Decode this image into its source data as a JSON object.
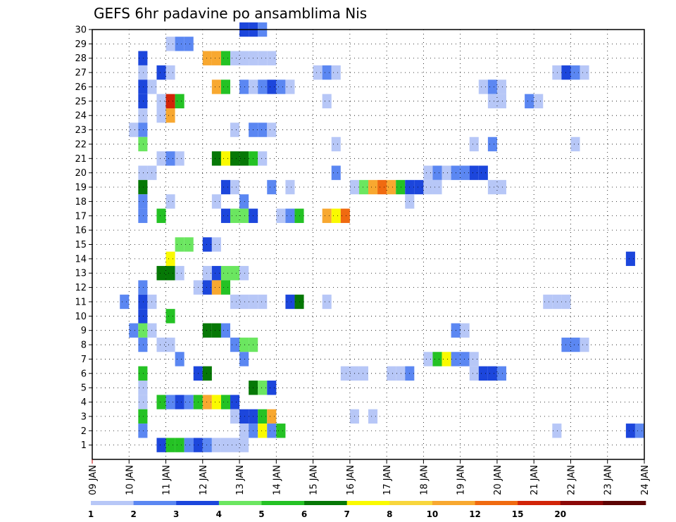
{
  "chart_data": {
    "type": "heatmap",
    "title": "GEFS 6hr padavine po ansamblima Nis",
    "xlabel": "",
    "ylabel": "",
    "x_ticks": [
      "09 JAN",
      "10 JAN",
      "11 JAN",
      "12 JAN",
      "13 JAN",
      "14 JAN",
      "15 JAN",
      "16 JAN",
      "17 JAN",
      "18 JAN",
      "19 JAN",
      "20 JAN",
      "21 JAN",
      "22 JAN",
      "23 JAN",
      "24 JAN"
    ],
    "y_ticks": [
      "1",
      "2",
      "3",
      "4",
      "5",
      "6",
      "7",
      "8",
      "9",
      "10",
      "11",
      "12",
      "13",
      "14",
      "15",
      "16",
      "17",
      "18",
      "19",
      "20",
      "21",
      "22",
      "23",
      "24",
      "25",
      "26",
      "27",
      "28",
      "29",
      "30"
    ],
    "xlim": [
      0,
      60
    ],
    "ylim": [
      0,
      30
    ],
    "grid": true,
    "x_unit": "6-hour step",
    "y_unit": "ensemble member",
    "levels": [
      "1",
      "2",
      "3",
      "4",
      "5",
      "6",
      "7",
      "8",
      "10",
      "12",
      "15",
      "20"
    ],
    "colors": [
      "#b7c7f7",
      "#5b87f2",
      "#1c46dc",
      "#6be660",
      "#24c224",
      "#067806",
      "#fafa00",
      "#f8d63c",
      "#f8a830",
      "#f06a10",
      "#d22408",
      "#8c0808",
      "#5c0404"
    ],
    "cells": [
      [
        17,
        30,
        2
      ],
      [
        18,
        30,
        2
      ],
      [
        19,
        30,
        1
      ],
      [
        9,
        29,
        0
      ],
      [
        10,
        29,
        1
      ],
      [
        11,
        29,
        1
      ],
      [
        6,
        28,
        2
      ],
      [
        13,
        28,
        8
      ],
      [
        14,
        28,
        8
      ],
      [
        15,
        28,
        4
      ],
      [
        16,
        28,
        0
      ],
      [
        17,
        28,
        0
      ],
      [
        18,
        28,
        0
      ],
      [
        19,
        28,
        0
      ],
      [
        20,
        28,
        0
      ],
      [
        6,
        27,
        0
      ],
      [
        8,
        27,
        2
      ],
      [
        9,
        27,
        0
      ],
      [
        25,
        27,
        0
      ],
      [
        26,
        27,
        1
      ],
      [
        27,
        27,
        0
      ],
      [
        51,
        27,
        0
      ],
      [
        52,
        27,
        2
      ],
      [
        53,
        27,
        1
      ],
      [
        54,
        27,
        0
      ],
      [
        6,
        26,
        2
      ],
      [
        7,
        26,
        0
      ],
      [
        14,
        26,
        8
      ],
      [
        15,
        26,
        4
      ],
      [
        17,
        26,
        1
      ],
      [
        18,
        26,
        0
      ],
      [
        19,
        26,
        1
      ],
      [
        20,
        26,
        2
      ],
      [
        21,
        26,
        1
      ],
      [
        22,
        26,
        0
      ],
      [
        43,
        26,
        0
      ],
      [
        44,
        26,
        1
      ],
      [
        45,
        26,
        0
      ],
      [
        6,
        25,
        2
      ],
      [
        8,
        25,
        0
      ],
      [
        9,
        25,
        10
      ],
      [
        10,
        25,
        4
      ],
      [
        26,
        25,
        0
      ],
      [
        44,
        25,
        0
      ],
      [
        45,
        25,
        0
      ],
      [
        48,
        25,
        1
      ],
      [
        49,
        25,
        0
      ],
      [
        6,
        24,
        0
      ],
      [
        8,
        24,
        0
      ],
      [
        9,
        24,
        8
      ],
      [
        5,
        23,
        0
      ],
      [
        6,
        23,
        1
      ],
      [
        16,
        23,
        0
      ],
      [
        18,
        23,
        1
      ],
      [
        19,
        23,
        1
      ],
      [
        20,
        23,
        0
      ],
      [
        6,
        22,
        3
      ],
      [
        27,
        22,
        0
      ],
      [
        42,
        22,
        0
      ],
      [
        44,
        22,
        1
      ],
      [
        53,
        22,
        0
      ],
      [
        8,
        21,
        0
      ],
      [
        9,
        21,
        1
      ],
      [
        10,
        21,
        0
      ],
      [
        14,
        21,
        5
      ],
      [
        15,
        21,
        6
      ],
      [
        16,
        21,
        5
      ],
      [
        17,
        21,
        5
      ],
      [
        18,
        21,
        4
      ],
      [
        19,
        21,
        0
      ],
      [
        6,
        20,
        0
      ],
      [
        7,
        20,
        0
      ],
      [
        27,
        20,
        1
      ],
      [
        37,
        20,
        0
      ],
      [
        38,
        20,
        1
      ],
      [
        39,
        20,
        0
      ],
      [
        40,
        20,
        1
      ],
      [
        41,
        20,
        1
      ],
      [
        42,
        20,
        2
      ],
      [
        43,
        20,
        2
      ],
      [
        6,
        19,
        5
      ],
      [
        15,
        19,
        2
      ],
      [
        16,
        19,
        0
      ],
      [
        20,
        19,
        1
      ],
      [
        22,
        19,
        0
      ],
      [
        29,
        19,
        0
      ],
      [
        30,
        19,
        3
      ],
      [
        31,
        19,
        8
      ],
      [
        32,
        19,
        9
      ],
      [
        33,
        19,
        8
      ],
      [
        34,
        19,
        4
      ],
      [
        35,
        19,
        2
      ],
      [
        36,
        19,
        2
      ],
      [
        37,
        19,
        0
      ],
      [
        38,
        19,
        0
      ],
      [
        44,
        19,
        0
      ],
      [
        45,
        19,
        0
      ],
      [
        6,
        18,
        1
      ],
      [
        9,
        18,
        0
      ],
      [
        14,
        18,
        0
      ],
      [
        17,
        18,
        1
      ],
      [
        35,
        18,
        0
      ],
      [
        6,
        17,
        1
      ],
      [
        8,
        17,
        4
      ],
      [
        15,
        17,
        2
      ],
      [
        16,
        17,
        3
      ],
      [
        17,
        17,
        3
      ],
      [
        18,
        17,
        2
      ],
      [
        21,
        17,
        0
      ],
      [
        22,
        17,
        1
      ],
      [
        23,
        17,
        4
      ],
      [
        26,
        17,
        8
      ],
      [
        27,
        17,
        6
      ],
      [
        28,
        17,
        9
      ],
      [
        10,
        15,
        3
      ],
      [
        11,
        15,
        3
      ],
      [
        13,
        15,
        2
      ],
      [
        14,
        15,
        0
      ],
      [
        9,
        14,
        6
      ],
      [
        59,
        14,
        2
      ],
      [
        8,
        13,
        5
      ],
      [
        9,
        13,
        5
      ],
      [
        10,
        13,
        0
      ],
      [
        13,
        13,
        0
      ],
      [
        14,
        13,
        2
      ],
      [
        15,
        13,
        3
      ],
      [
        16,
        13,
        3
      ],
      [
        17,
        13,
        0
      ],
      [
        6,
        12,
        1
      ],
      [
        12,
        12,
        0
      ],
      [
        13,
        12,
        2
      ],
      [
        14,
        12,
        8
      ],
      [
        15,
        12,
        4
      ],
      [
        4,
        11,
        1
      ],
      [
        6,
        11,
        2
      ],
      [
        7,
        11,
        0
      ],
      [
        16,
        11,
        0
      ],
      [
        17,
        11,
        0
      ],
      [
        18,
        11,
        0
      ],
      [
        19,
        11,
        0
      ],
      [
        22,
        11,
        2
      ],
      [
        23,
        11,
        5
      ],
      [
        26,
        11,
        0
      ],
      [
        50,
        11,
        0
      ],
      [
        51,
        11,
        0
      ],
      [
        52,
        11,
        0
      ],
      [
        6,
        10,
        2
      ],
      [
        9,
        10,
        4
      ],
      [
        5,
        9,
        1
      ],
      [
        6,
        9,
        3
      ],
      [
        7,
        9,
        0
      ],
      [
        13,
        9,
        5
      ],
      [
        14,
        9,
        5
      ],
      [
        15,
        9,
        1
      ],
      [
        40,
        9,
        1
      ],
      [
        41,
        9,
        0
      ],
      [
        6,
        8,
        1
      ],
      [
        8,
        8,
        0
      ],
      [
        9,
        8,
        0
      ],
      [
        16,
        8,
        1
      ],
      [
        17,
        8,
        3
      ],
      [
        18,
        8,
        3
      ],
      [
        52,
        8,
        1
      ],
      [
        53,
        8,
        1
      ],
      [
        54,
        8,
        0
      ],
      [
        10,
        7,
        1
      ],
      [
        17,
        7,
        1
      ],
      [
        37,
        7,
        0
      ],
      [
        38,
        7,
        4
      ],
      [
        39,
        7,
        6
      ],
      [
        40,
        7,
        1
      ],
      [
        41,
        7,
        1
      ],
      [
        42,
        7,
        0
      ],
      [
        6,
        6,
        4
      ],
      [
        12,
        6,
        2
      ],
      [
        13,
        6,
        5
      ],
      [
        28,
        6,
        0
      ],
      [
        29,
        6,
        0
      ],
      [
        30,
        6,
        0
      ],
      [
        33,
        6,
        0
      ],
      [
        34,
        6,
        0
      ],
      [
        35,
        6,
        1
      ],
      [
        42,
        6,
        0
      ],
      [
        43,
        6,
        2
      ],
      [
        44,
        6,
        2
      ],
      [
        45,
        6,
        1
      ],
      [
        6,
        5,
        0
      ],
      [
        18,
        5,
        5
      ],
      [
        19,
        5,
        3
      ],
      [
        20,
        5,
        2
      ],
      [
        6,
        4,
        0
      ],
      [
        8,
        4,
        4
      ],
      [
        9,
        4,
        1
      ],
      [
        10,
        4,
        2
      ],
      [
        11,
        4,
        1
      ],
      [
        12,
        4,
        4
      ],
      [
        13,
        4,
        8
      ],
      [
        14,
        4,
        6
      ],
      [
        15,
        4,
        4
      ],
      [
        16,
        4,
        2
      ],
      [
        6,
        3,
        4
      ],
      [
        16,
        3,
        0
      ],
      [
        17,
        3,
        2
      ],
      [
        18,
        3,
        2
      ],
      [
        19,
        3,
        4
      ],
      [
        20,
        3,
        8
      ],
      [
        29,
        3,
        0
      ],
      [
        31,
        3,
        0
      ],
      [
        6,
        2,
        1
      ],
      [
        17,
        2,
        0
      ],
      [
        18,
        2,
        1
      ],
      [
        19,
        2,
        6
      ],
      [
        20,
        2,
        1
      ],
      [
        21,
        2,
        4
      ],
      [
        51,
        2,
        0
      ],
      [
        59,
        2,
        2
      ],
      [
        60,
        2,
        1
      ],
      [
        8,
        1,
        2
      ],
      [
        9,
        1,
        4
      ],
      [
        10,
        1,
        4
      ],
      [
        11,
        1,
        1
      ],
      [
        12,
        1,
        2
      ],
      [
        13,
        1,
        1
      ],
      [
        14,
        1,
        0
      ],
      [
        15,
        1,
        0
      ],
      [
        16,
        1,
        0
      ],
      [
        17,
        1,
        0
      ]
    ]
  }
}
